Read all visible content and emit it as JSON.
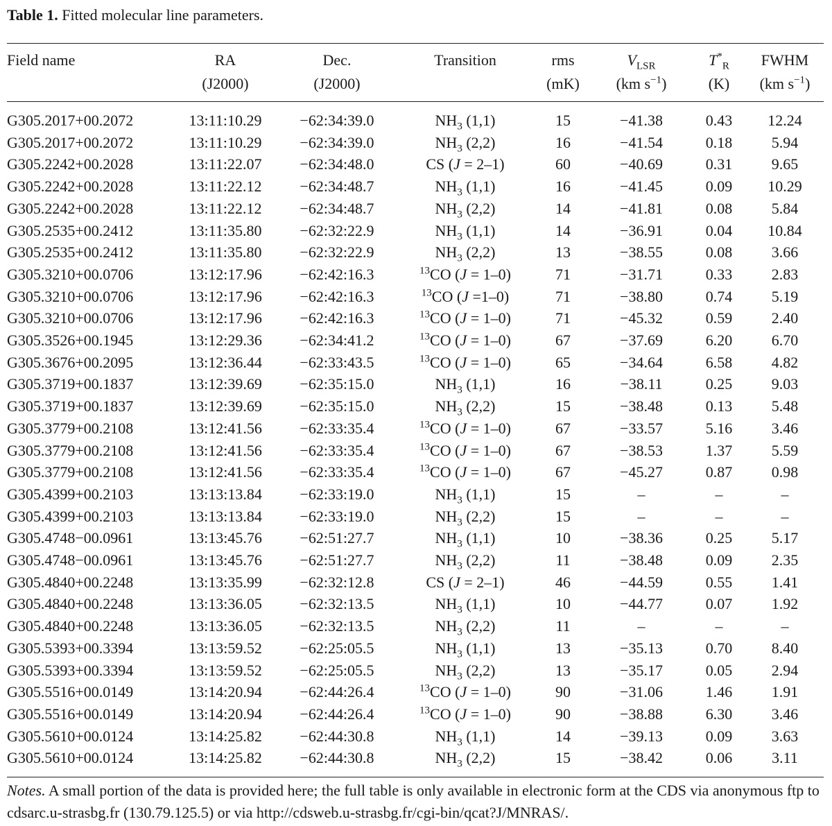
{
  "caption": {
    "label": "Table 1.",
    "text": "Fitted molecular line parameters."
  },
  "headers": {
    "field": "Field name",
    "ra": "RA",
    "ra_epoch": "(J2000)",
    "dec": "Dec.",
    "dec_epoch": "(J2000)",
    "transition": "Transition",
    "rms": "rms",
    "rms_unit": "(mK)",
    "vlsr_sym": "V",
    "vlsr_sub": "LSR",
    "vlsr_unit": "(km s",
    "vlsr_unit_sup": "−1",
    "vlsr_unit_close": ")",
    "tr_sym": "T",
    "tr_sup": "*",
    "tr_sub": "R",
    "tr_unit": "(K)",
    "fwhm": "FWHM",
    "fwhm_unit": "(km s",
    "fwhm_unit_sup": "−1",
    "fwhm_unit_close": ")"
  },
  "rows": [
    {
      "field": "G305.2017+00.2072",
      "ra": "13:11:10.29",
      "dec": "−62:34:39.0",
      "transition": "NH3 (1,1)",
      "rms": "15",
      "vlsr": "−41.38",
      "tr": "0.43",
      "fwhm": "12.24"
    },
    {
      "field": "G305.2017+00.2072",
      "ra": "13:11:10.29",
      "dec": "−62:34:39.0",
      "transition": "NH3 (2,2)",
      "rms": "16",
      "vlsr": "−41.54",
      "tr": "0.18",
      "fwhm": "5.94"
    },
    {
      "field": "G305.2242+00.2028",
      "ra": "13:11:22.07",
      "dec": "−62:34:48.0",
      "transition": "CS (J = 2–1)",
      "rms": "60",
      "vlsr": "−40.69",
      "tr": "0.31",
      "fwhm": "9.65"
    },
    {
      "field": "G305.2242+00.2028",
      "ra": "13:11:22.12",
      "dec": "−62:34:48.7",
      "transition": "NH3 (1,1)",
      "rms": "16",
      "vlsr": "−41.45",
      "tr": "0.09",
      "fwhm": "10.29"
    },
    {
      "field": "G305.2242+00.2028",
      "ra": "13:11:22.12",
      "dec": "−62:34:48.7",
      "transition": "NH3 (2,2)",
      "rms": "14",
      "vlsr": "−41.81",
      "tr": "0.08",
      "fwhm": "5.84"
    },
    {
      "field": "G305.2535+00.2412",
      "ra": "13:11:35.80",
      "dec": "−62:32:22.9",
      "transition": "NH3 (1,1)",
      "rms": "14",
      "vlsr": "−36.91",
      "tr": "0.04",
      "fwhm": "10.84"
    },
    {
      "field": "G305.2535+00.2412",
      "ra": "13:11:35.80",
      "dec": "−62:32:22.9",
      "transition": "NH3 (2,2)",
      "rms": "13",
      "vlsr": "−38.55",
      "tr": "0.08",
      "fwhm": "3.66"
    },
    {
      "field": "G305.3210+00.0706",
      "ra": "13:12:17.96",
      "dec": "−62:42:16.3",
      "transition": "13CO (J = 1–0)",
      "rms": "71",
      "vlsr": "−31.71",
      "tr": "0.33",
      "fwhm": "2.83"
    },
    {
      "field": "G305.3210+00.0706",
      "ra": "13:12:17.96",
      "dec": "−62:42:16.3",
      "transition": "13CO (J =1–0)",
      "rms": "71",
      "vlsr": "−38.80",
      "tr": "0.74",
      "fwhm": "5.19"
    },
    {
      "field": "G305.3210+00.0706",
      "ra": "13:12:17.96",
      "dec": "−62:42:16.3",
      "transition": "13CO (J = 1–0)",
      "rms": "71",
      "vlsr": "−45.32",
      "tr": "0.59",
      "fwhm": "2.40"
    },
    {
      "field": "G305.3526+00.1945",
      "ra": "13:12:29.36",
      "dec": "−62:34:41.2",
      "transition": "13CO (J = 1–0)",
      "rms": "67",
      "vlsr": "−37.69",
      "tr": "6.20",
      "fwhm": "6.70"
    },
    {
      "field": "G305.3676+00.2095",
      "ra": "13:12:36.44",
      "dec": "−62:33:43.5",
      "transition": "13CO (J = 1–0)",
      "rms": "65",
      "vlsr": "−34.64",
      "tr": "6.58",
      "fwhm": "4.82"
    },
    {
      "field": "G305.3719+00.1837",
      "ra": "13:12:39.69",
      "dec": "−62:35:15.0",
      "transition": "NH3 (1,1)",
      "rms": "16",
      "vlsr": "−38.11",
      "tr": "0.25",
      "fwhm": "9.03"
    },
    {
      "field": "G305.3719+00.1837",
      "ra": "13:12:39.69",
      "dec": "−62:35:15.0",
      "transition": "NH3 (2,2)",
      "rms": "15",
      "vlsr": "−38.48",
      "tr": "0.13",
      "fwhm": "5.48"
    },
    {
      "field": "G305.3779+00.2108",
      "ra": "13:12:41.56",
      "dec": "−62:33:35.4",
      "transition": "13CO (J = 1–0)",
      "rms": "67",
      "vlsr": "−33.57",
      "tr": "5.16",
      "fwhm": "3.46"
    },
    {
      "field": "G305.3779+00.2108",
      "ra": "13:12:41.56",
      "dec": "−62:33:35.4",
      "transition": "13CO (J = 1–0)",
      "rms": "67",
      "vlsr": "−38.53",
      "tr": "1.37",
      "fwhm": "5.59"
    },
    {
      "field": "G305.3779+00.2108",
      "ra": "13:12:41.56",
      "dec": "−62:33:35.4",
      "transition": "13CO (J = 1–0)",
      "rms": "67",
      "vlsr": "−45.27",
      "tr": "0.87",
      "fwhm": "0.98"
    },
    {
      "field": "G305.4399+00.2103",
      "ra": "13:13:13.84",
      "dec": "−62:33:19.0",
      "transition": "NH3 (1,1)",
      "rms": "15",
      "vlsr": "–",
      "tr": "–",
      "fwhm": "–"
    },
    {
      "field": "G305.4399+00.2103",
      "ra": "13:13:13.84",
      "dec": "−62:33:19.0",
      "transition": "NH3 (2,2)",
      "rms": "15",
      "vlsr": "–",
      "tr": "–",
      "fwhm": "–"
    },
    {
      "field": "G305.4748−00.0961",
      "ra": "13:13:45.76",
      "dec": "−62:51:27.7",
      "transition": "NH3 (1,1)",
      "rms": "10",
      "vlsr": "−38.36",
      "tr": "0.25",
      "fwhm": "5.17"
    },
    {
      "field": "G305.4748−00.0961",
      "ra": "13:13:45.76",
      "dec": "−62:51:27.7",
      "transition": "NH3 (2,2)",
      "rms": "11",
      "vlsr": "−38.48",
      "tr": "0.09",
      "fwhm": "2.35"
    },
    {
      "field": "G305.4840+00.2248",
      "ra": "13:13:35.99",
      "dec": "−62:32:12.8",
      "transition": "CS (J = 2–1)",
      "rms": "46",
      "vlsr": "−44.59",
      "tr": "0.55",
      "fwhm": "1.41"
    },
    {
      "field": "G305.4840+00.2248",
      "ra": "13:13:36.05",
      "dec": "−62:32:13.5",
      "transition": "NH3 (1,1)",
      "rms": "10",
      "vlsr": "−44.77",
      "tr": "0.07",
      "fwhm": "1.92"
    },
    {
      "field": "G305.4840+00.2248",
      "ra": "13:13:36.05",
      "dec": "−62:32:13.5",
      "transition": "NH3 (2,2)",
      "rms": "11",
      "vlsr": "–",
      "tr": "–",
      "fwhm": "–"
    },
    {
      "field": "G305.5393+00.3394",
      "ra": "13:13:59.52",
      "dec": "−62:25:05.5",
      "transition": "NH3 (1,1)",
      "rms": "13",
      "vlsr": "−35.13",
      "tr": "0.70",
      "fwhm": "8.40"
    },
    {
      "field": "G305.5393+00.3394",
      "ra": "13:13:59.52",
      "dec": "−62:25:05.5",
      "transition": "NH3 (2,2)",
      "rms": "13",
      "vlsr": "−35.17",
      "tr": "0.05",
      "fwhm": "2.94"
    },
    {
      "field": "G305.5516+00.0149",
      "ra": "13:14:20.94",
      "dec": "−62:44:26.4",
      "transition": "13CO (J = 1–0)",
      "rms": "90",
      "vlsr": "−31.06",
      "tr": "1.46",
      "fwhm": "1.91"
    },
    {
      "field": "G305.5516+00.0149",
      "ra": "13:14:20.94",
      "dec": "−62:44:26.4",
      "transition": "13CO (J = 1–0)",
      "rms": "90",
      "vlsr": "−38.88",
      "tr": "6.30",
      "fwhm": "3.46"
    },
    {
      "field": "G305.5610+00.0124",
      "ra": "13:14:25.82",
      "dec": "−62:44:30.8",
      "transition": "NH3 (1,1)",
      "rms": "14",
      "vlsr": "−39.13",
      "tr": "0.09",
      "fwhm": "3.63"
    },
    {
      "field": "G305.5610+00.0124",
      "ra": "13:14:25.82",
      "dec": "−62:44:30.8",
      "transition": "NH3 (2,2)",
      "rms": "15",
      "vlsr": "−38.42",
      "tr": "0.06",
      "fwhm": "3.11"
    }
  ],
  "notes": {
    "label": "Notes.",
    "text": "A small portion of the data is provided here; the full table is only available in electronic form at the CDS via anonymous ftp to cdsarc.u-strasbg.fr (130.79.125.5) or via http://cdsweb.u-strasbg.fr/cgi-bin/qcat?J/MNRAS/."
  }
}
